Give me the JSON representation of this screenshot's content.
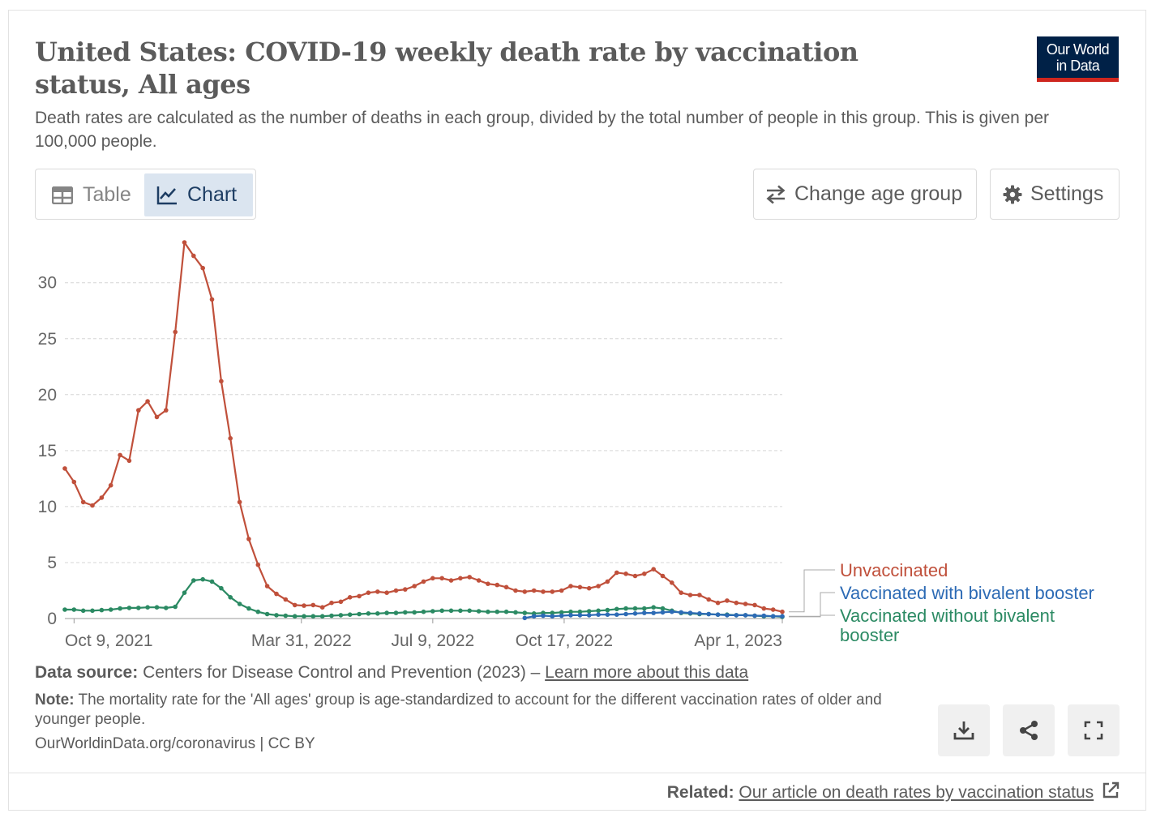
{
  "header": {
    "title": "United States: COVID-19 weekly death rate by vaccination status, All ages",
    "subtitle": "Death rates are calculated as the number of deaths in each group, divided by the total number of people in this group. This is given per 100,000 people.",
    "logo_line1": "Our World",
    "logo_line2": "in Data"
  },
  "controls": {
    "tab_table": "Table",
    "tab_chart": "Chart",
    "change_age_group": "Change age group",
    "settings": "Settings"
  },
  "footer": {
    "source_label": "Data source:",
    "source_text": "Centers for Disease Control and Prevention (2023) –",
    "source_link": "Learn more about this data",
    "note_label": "Note:",
    "note_text": "The mortality rate for the 'All ages' group is age-standardized to account for the different vaccination rates of older and younger people.",
    "origin": "OurWorldinData.org/coronavirus | CC BY",
    "related_label": "Related:",
    "related_link": "Our article on death rates by vaccination status"
  },
  "colors": {
    "unvaccinated": "#c0503b",
    "bivalent": "#2d6bb5",
    "without_bivalent": "#2b8a63",
    "grid": "#d6d6d6",
    "axis_text": "#666666"
  },
  "chart_data": {
    "type": "line",
    "x_axis": {
      "type": "date",
      "ticks": [
        "Oct 9, 2021",
        "Mar 31, 2022",
        "Jul 9, 2022",
        "Oct 17, 2022",
        "Apr 1, 2023"
      ]
    },
    "y_axis": {
      "ticks": [
        0,
        5,
        10,
        15,
        20,
        25,
        30
      ],
      "ylim": [
        0,
        33.6
      ]
    },
    "grid": true,
    "legend": "right, inline labels",
    "start_date": "2021-10-02",
    "week_step_days": 7,
    "series": [
      {
        "name": "Unvaccinated",
        "color_key": "unvaccinated",
        "label_lines": [
          "Unvaccinated"
        ],
        "values": [
          13.4,
          12.2,
          10.4,
          10.1,
          10.8,
          11.9,
          14.6,
          14.1,
          18.6,
          19.4,
          18.0,
          18.6,
          25.6,
          33.6,
          32.4,
          31.3,
          28.5,
          21.2,
          16.1,
          10.4,
          7.1,
          4.8,
          2.9,
          2.2,
          1.7,
          1.2,
          1.15,
          1.2,
          1.0,
          1.4,
          1.5,
          1.9,
          2.0,
          2.3,
          2.4,
          2.3,
          2.5,
          2.6,
          2.9,
          3.3,
          3.6,
          3.6,
          3.4,
          3.6,
          3.7,
          3.4,
          3.1,
          3.0,
          2.8,
          2.5,
          2.4,
          2.5,
          2.4,
          2.4,
          2.5,
          2.9,
          2.8,
          2.7,
          2.9,
          3.3,
          4.1,
          4.0,
          3.8,
          4.0,
          4.4,
          3.8,
          3.2,
          2.3,
          2.1,
          2.1,
          1.7,
          1.4,
          1.6,
          1.4,
          1.3,
          1.2,
          0.9,
          0.8,
          0.6
        ]
      },
      {
        "name": "Vaccinated with bivalent booster",
        "color_key": "bivalent",
        "label_lines": [
          "Vaccinated with bivalent booster"
        ],
        "start_index": 50,
        "values": [
          0.05,
          0.2,
          0.25,
          0.2,
          0.25,
          0.3,
          0.3,
          0.3,
          0.35,
          0.35,
          0.35,
          0.4,
          0.45,
          0.5,
          0.5,
          0.55,
          0.6,
          0.55,
          0.5,
          0.45,
          0.4,
          0.35,
          0.3,
          0.3,
          0.3,
          0.25,
          0.25,
          0.2,
          0.2
        ]
      },
      {
        "name": "Vaccinated without bivalent booster",
        "color_key": "without_bivalent",
        "label_lines": [
          "Vaccinated without bivalent",
          "booster"
        ],
        "values": [
          0.8,
          0.8,
          0.7,
          0.7,
          0.75,
          0.8,
          0.9,
          0.95,
          0.95,
          1.0,
          1.0,
          0.95,
          1.05,
          2.3,
          3.4,
          3.5,
          3.3,
          2.7,
          1.9,
          1.3,
          0.9,
          0.6,
          0.4,
          0.3,
          0.25,
          0.2,
          0.2,
          0.2,
          0.2,
          0.25,
          0.3,
          0.35,
          0.4,
          0.45,
          0.45,
          0.5,
          0.5,
          0.55,
          0.55,
          0.6,
          0.65,
          0.7,
          0.7,
          0.7,
          0.7,
          0.65,
          0.6,
          0.6,
          0.6,
          0.55,
          0.5,
          0.45,
          0.5,
          0.5,
          0.55,
          0.6,
          0.6,
          0.65,
          0.7,
          0.75,
          0.85,
          0.9,
          0.9,
          0.9,
          1.0,
          0.9,
          0.7,
          0.5,
          0.45,
          0.4,
          0.4,
          0.35,
          0.35,
          0.3,
          0.3,
          0.25,
          0.2,
          0.2,
          0.15
        ]
      }
    ]
  }
}
